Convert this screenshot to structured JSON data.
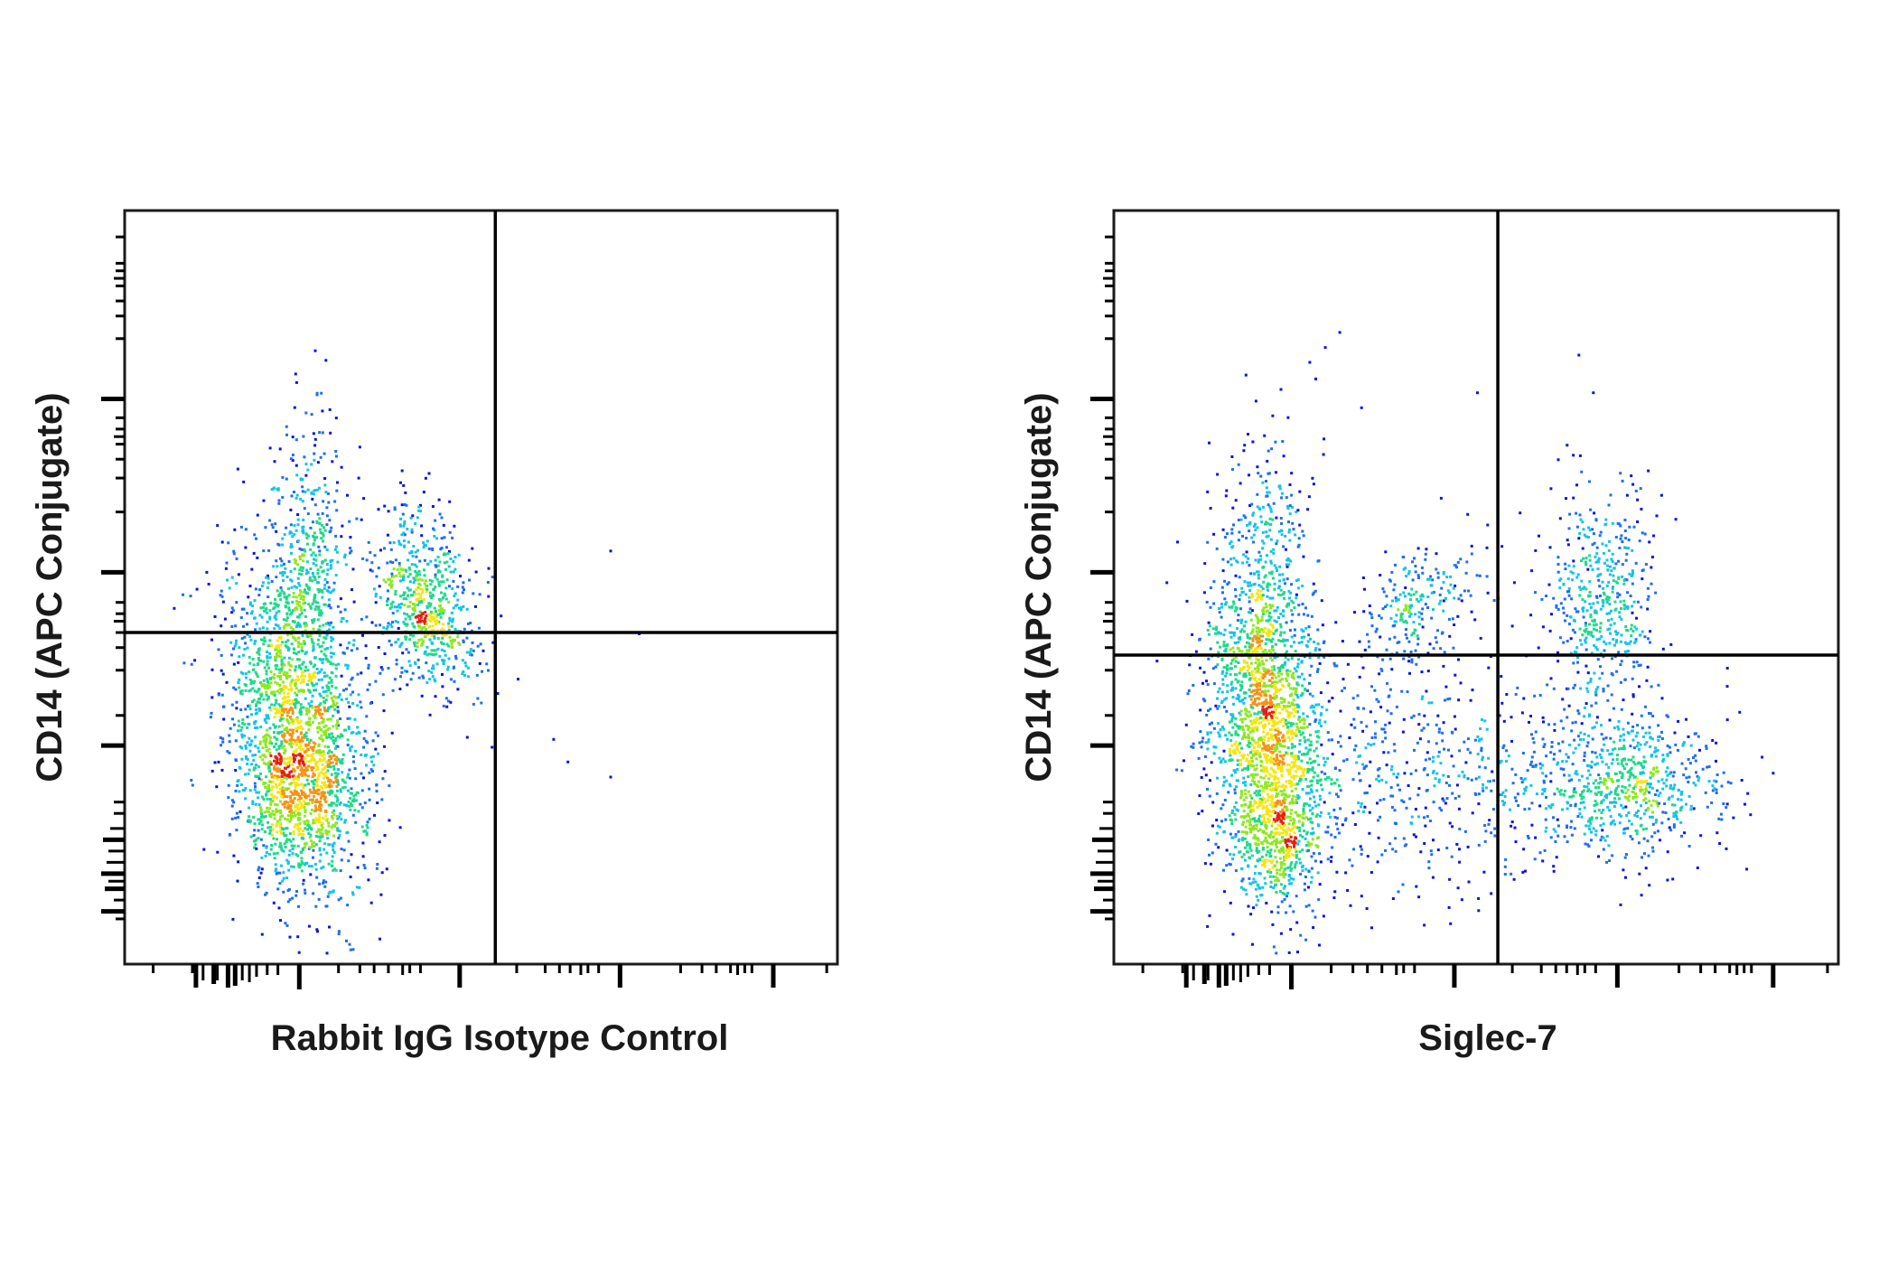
{
  "chart_data": [
    {
      "type": "scatter",
      "style": "density-colored flow cytometry dot plot",
      "xlabel": "Rabbit IgG Isotype Control",
      "ylabel": "CD14 (APC Conjugate)",
      "x_scale": "biexponential",
      "y_scale": "biexponential",
      "tick_labels": "none",
      "grid": false,
      "density_colors": [
        "#0a16d8",
        "#1f6ef0",
        "#13c4e8",
        "#1ed98c",
        "#8ee820",
        "#f4e614",
        "#f49414",
        "#e81c10"
      ],
      "quadrant_gate": {
        "x": 0.52,
        "y": 0.44
      },
      "populations": [
        {
          "name": "",
          "x": 0.24,
          "y": 0.33,
          "sx": 0.05,
          "sy": 0.12,
          "rot": 0.25,
          "n": 1800
        },
        {
          "name": "",
          "x": 0.24,
          "y": 0.22,
          "sx": 0.04,
          "sy": 0.05,
          "rot": 0.0,
          "n": 500
        },
        {
          "name": "",
          "x": 0.42,
          "y": 0.48,
          "sx": 0.035,
          "sy": 0.07,
          "rot": 0.6,
          "n": 650
        },
        {
          "name": "",
          "x": 0.26,
          "y": 0.55,
          "sx": 0.025,
          "sy": 0.09,
          "rot": 0.1,
          "n": 280
        }
      ],
      "scatter_points": [
        [
          0.55,
          0.38
        ],
        [
          0.62,
          0.27
        ],
        [
          0.68,
          0.25
        ],
        [
          0.72,
          0.44
        ],
        [
          0.68,
          0.55
        ],
        [
          0.6,
          0.3
        ]
      ]
    },
    {
      "type": "scatter",
      "style": "density-colored flow cytometry dot plot",
      "xlabel": "Siglec-7",
      "ylabel": "CD14 (APC Conjugate)",
      "x_scale": "biexponential",
      "y_scale": "biexponential",
      "tick_labels": "none",
      "grid": false,
      "density_colors": [
        "#0a16d8",
        "#1f6ef0",
        "#13c4e8",
        "#1ed98c",
        "#8ee820",
        "#f4e614",
        "#f49414",
        "#e81c10"
      ],
      "quadrant_gate": {
        "x": 0.53,
        "y": 0.41
      },
      "populations": [
        {
          "name": "",
          "x": 0.21,
          "y": 0.32,
          "sx": 0.04,
          "sy": 0.11,
          "rot": 0.15,
          "n": 1800
        },
        {
          "name": "",
          "x": 0.22,
          "y": 0.16,
          "sx": 0.03,
          "sy": 0.04,
          "rot": 0.0,
          "n": 300
        },
        {
          "name": "",
          "x": 0.7,
          "y": 0.24,
          "sx": 0.07,
          "sy": 0.05,
          "rot": 0.0,
          "n": 700
        },
        {
          "name": "",
          "x": 0.67,
          "y": 0.49,
          "sx": 0.04,
          "sy": 0.07,
          "rot": 0.0,
          "n": 450
        },
        {
          "name": "",
          "x": 0.42,
          "y": 0.26,
          "sx": 0.12,
          "sy": 0.08,
          "rot": 0.0,
          "n": 550
        },
        {
          "name": "",
          "x": 0.42,
          "y": 0.48,
          "sx": 0.05,
          "sy": 0.04,
          "rot": 0.6,
          "n": 220
        },
        {
          "name": "",
          "x": 0.21,
          "y": 0.55,
          "sx": 0.03,
          "sy": 0.09,
          "rot": 0.0,
          "n": 250
        }
      ],
      "scatter_points": [
        [
          0.29,
          0.82
        ],
        [
          0.31,
          0.84
        ],
        [
          0.5,
          0.76
        ],
        [
          0.64,
          0.81
        ],
        [
          0.66,
          0.76
        ],
        [
          0.34,
          0.74
        ],
        [
          0.45,
          0.62
        ]
      ]
    }
  ]
}
